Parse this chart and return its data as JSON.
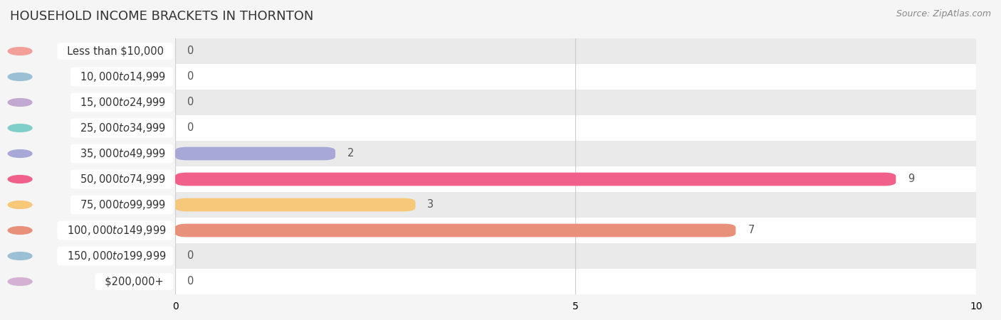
{
  "title": "HOUSEHOLD INCOME BRACKETS IN THORNTON",
  "source": "Source: ZipAtlas.com",
  "categories": [
    "Less than $10,000",
    "$10,000 to $14,999",
    "$15,000 to $24,999",
    "$25,000 to $34,999",
    "$35,000 to $49,999",
    "$50,000 to $74,999",
    "$75,000 to $99,999",
    "$100,000 to $149,999",
    "$150,000 to $199,999",
    "$200,000+"
  ],
  "values": [
    0,
    0,
    0,
    0,
    2,
    9,
    3,
    7,
    0,
    0
  ],
  "bar_colors": [
    "#f2a099",
    "#9bbfd4",
    "#c3a8d1",
    "#7ececa",
    "#a8a8d8",
    "#f0608a",
    "#f8c87a",
    "#e8907a",
    "#9bbfd4",
    "#d4b0d4"
  ],
  "xlim": [
    0,
    10
  ],
  "background_color": "#f5f5f5",
  "title_fontsize": 13,
  "label_fontsize": 10.5,
  "value_fontsize": 10.5,
  "source_fontsize": 9
}
